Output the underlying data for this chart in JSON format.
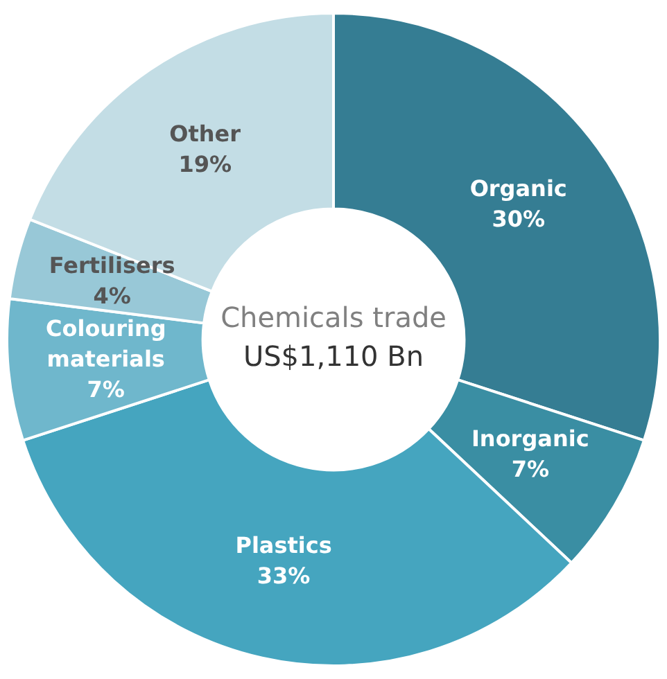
{
  "chart_data": {
    "type": "donut",
    "title": "Chemicals trade",
    "subtitle": "US$1,110 Bn",
    "categories": [
      "Organic",
      "Inorganic",
      "Plastics",
      "Colouring materials",
      "Fertilisers",
      "Other"
    ],
    "values": [
      30,
      7,
      33,
      7,
      4,
      19
    ],
    "value_labels": [
      "30%",
      "7%",
      "33%",
      "7%",
      "4%",
      "19%"
    ],
    "colors": [
      "#357d93",
      "#3a8ea3",
      "#45a5bf",
      "#6fb7cc",
      "#98c8d7",
      "#c3dde5"
    ],
    "legend": false
  }
}
